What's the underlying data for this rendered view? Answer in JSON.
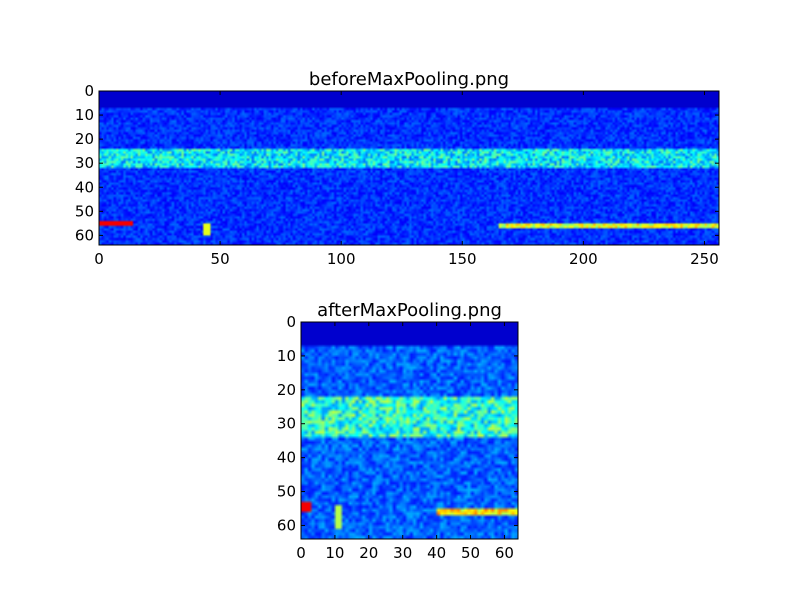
{
  "chart_data": [
    {
      "type": "heatmap",
      "title": "beforeMaxPooling.png",
      "colormap": "jet",
      "columns": 256,
      "rows": 64,
      "xlim": [
        0,
        256
      ],
      "ylim": [
        64,
        0
      ],
      "xticks": [
        "0",
        "50",
        "100",
        "150",
        "200",
        "250"
      ],
      "yticks": [
        "0",
        "10",
        "20",
        "30",
        "40",
        "50",
        "60"
      ],
      "features": [
        {
          "desc": "low background",
          "rows": [
            0,
            7
          ],
          "level": 0.05
        },
        {
          "desc": "noisy field",
          "rows": [
            7,
            64
          ],
          "level": 0.15
        },
        {
          "desc": "band",
          "rows": [
            24,
            32
          ],
          "level": 0.35
        },
        {
          "desc": "hot streak",
          "cols": [
            0,
            14
          ],
          "rows": [
            54,
            56
          ],
          "level": 0.9
        },
        {
          "desc": "spot",
          "cols": [
            43,
            46
          ],
          "rows": [
            55,
            60
          ],
          "level": 0.6
        },
        {
          "desc": "streak",
          "cols": [
            165,
            256
          ],
          "rows": [
            55,
            57
          ],
          "level": 0.65
        }
      ]
    },
    {
      "type": "heatmap",
      "title": "afterMaxPooling.png",
      "colormap": "jet",
      "columns": 64,
      "rows": 64,
      "xlim": [
        0,
        64
      ],
      "ylim": [
        64,
        0
      ],
      "xticks": [
        "0",
        "10",
        "20",
        "30",
        "40",
        "50",
        "60"
      ],
      "yticks": [
        "0",
        "10",
        "20",
        "30",
        "40",
        "50",
        "60"
      ],
      "features": [
        {
          "desc": "low background",
          "rows": [
            0,
            7
          ],
          "level": 0.05
        },
        {
          "desc": "noisy field",
          "rows": [
            7,
            64
          ],
          "level": 0.2
        },
        {
          "desc": "band",
          "rows": [
            22,
            34
          ],
          "level": 0.4
        },
        {
          "desc": "hot streak",
          "cols": [
            0,
            3
          ],
          "rows": [
            53,
            56
          ],
          "level": 0.9
        },
        {
          "desc": "spot",
          "cols": [
            10,
            12
          ],
          "rows": [
            54,
            61
          ],
          "level": 0.55
        },
        {
          "desc": "streak",
          "cols": [
            40,
            64
          ],
          "rows": [
            55,
            57
          ],
          "level": 0.7
        }
      ]
    }
  ]
}
